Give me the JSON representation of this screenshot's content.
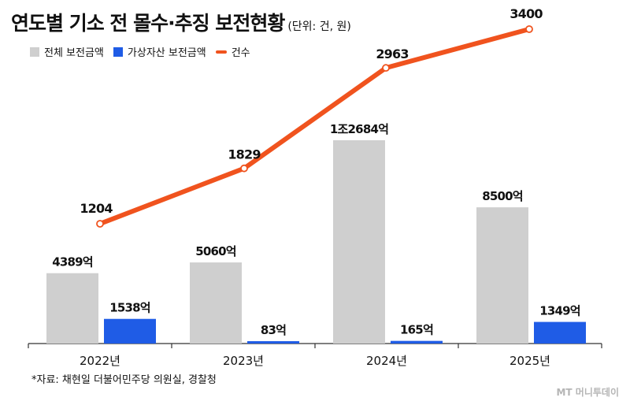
{
  "header": {
    "title": "연도별 기소 전 몰수·추징 보전현황",
    "unit": "(단위: 건, 원)"
  },
  "legend": [
    {
      "label": "전체 보전금액",
      "color": "#cfcfcf",
      "kind": "box"
    },
    {
      "label": "가상자산 보전금액",
      "color": "#1f5ce6",
      "kind": "box"
    },
    {
      "label": "건수",
      "color": "#f0531e",
      "kind": "line"
    }
  ],
  "chart_data": {
    "type": "bar",
    "title": "연도별 기소 전 몰수·추징 보전현황",
    "categories": [
      "2022년",
      "2023년",
      "2024년",
      "2025년"
    ],
    "series": [
      {
        "name": "전체 보전금액",
        "type": "bar",
        "color": "#cfcfcf",
        "values": [
          4389,
          5060,
          12684,
          8500
        ],
        "labels": [
          "4389억",
          "5060억",
          "1조2684억",
          "8500억"
        ]
      },
      {
        "name": "가상자산 보전금액",
        "type": "bar",
        "color": "#1f5ce6",
        "values": [
          1538,
          83,
          165,
          1349
        ],
        "labels": [
          "1538억",
          "83억",
          "165억",
          "1349억"
        ]
      },
      {
        "name": "건수",
        "type": "line",
        "color": "#f0531e",
        "values": [
          1204,
          1829,
          2963,
          3400
        ],
        "labels": [
          "1204",
          "1829",
          "2963",
          "3400"
        ]
      }
    ]
  },
  "footer": {
    "source": "*자료: 채현일 더불어민주당 의원실, 경찰청",
    "watermark": "MT 머니투데이"
  }
}
